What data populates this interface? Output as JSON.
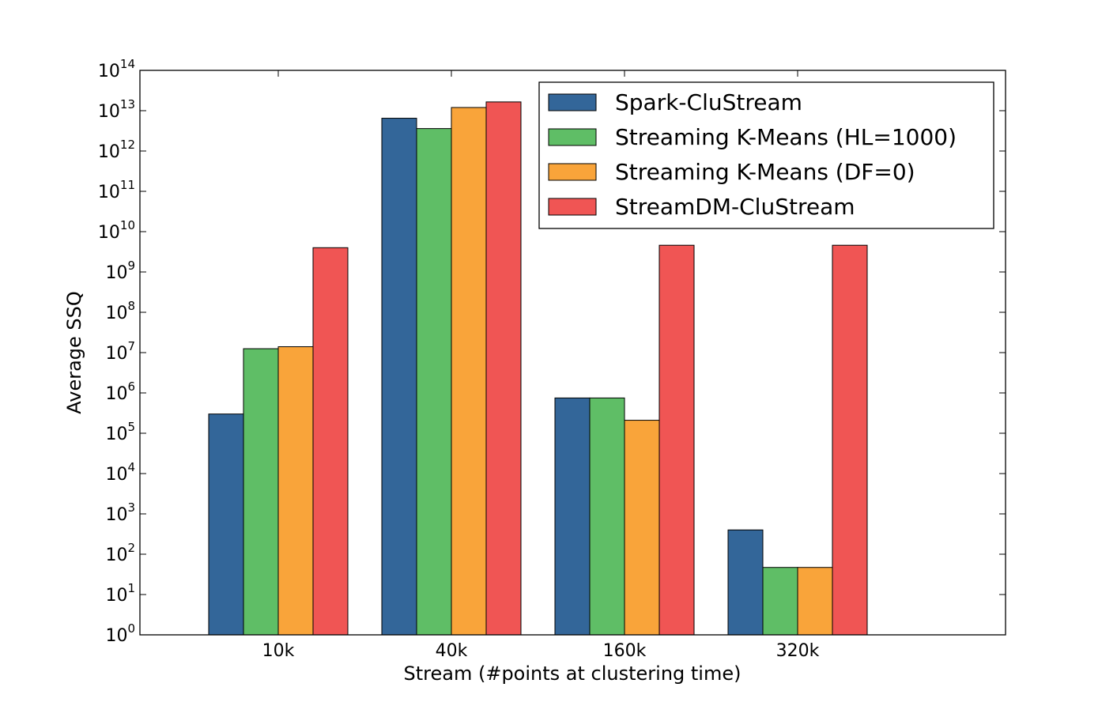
{
  "chart_data": {
    "type": "bar",
    "categories": [
      "10k",
      "40k",
      "160k",
      "320k"
    ],
    "series": [
      {
        "name": "Spark-CluStream",
        "color": "#336699",
        "values": [
          300000,
          6500000000000,
          750000,
          400
        ]
      },
      {
        "name": "Streaming K-Means (HL=1000)",
        "color": "#5fbe66",
        "values": [
          12500000,
          3600000000000,
          750000,
          47
        ]
      },
      {
        "name": "Streaming K-Means (DF=0)",
        "color": "#f9a43a",
        "values": [
          14000000,
          12000000000000,
          210000,
          47
        ]
      },
      {
        "name": "StreamDM-CluStream",
        "color": "#f05554",
        "values": [
          4000000000,
          16500000000000,
          4600000000,
          4600000000
        ]
      }
    ],
    "title": "",
    "xlabel": "Stream (#points at clustering time)",
    "ylabel": "Average SSQ",
    "yscale": "log",
    "ylim": [
      1,
      100000000000000
    ],
    "yticks": [
      {
        "base": "10",
        "exp": "0"
      },
      {
        "base": "10",
        "exp": "1"
      },
      {
        "base": "10",
        "exp": "2"
      },
      {
        "base": "10",
        "exp": "3"
      },
      {
        "base": "10",
        "exp": "4"
      },
      {
        "base": "10",
        "exp": "5"
      },
      {
        "base": "10",
        "exp": "6"
      },
      {
        "base": "10",
        "exp": "7"
      },
      {
        "base": "10",
        "exp": "8"
      },
      {
        "base": "10",
        "exp": "9"
      },
      {
        "base": "10",
        "exp": "10"
      },
      {
        "base": "10",
        "exp": "11"
      },
      {
        "base": "10",
        "exp": "12"
      },
      {
        "base": "10",
        "exp": "13"
      },
      {
        "base": "10",
        "exp": "14"
      }
    ],
    "grid": false,
    "legend_position": "top-right"
  }
}
